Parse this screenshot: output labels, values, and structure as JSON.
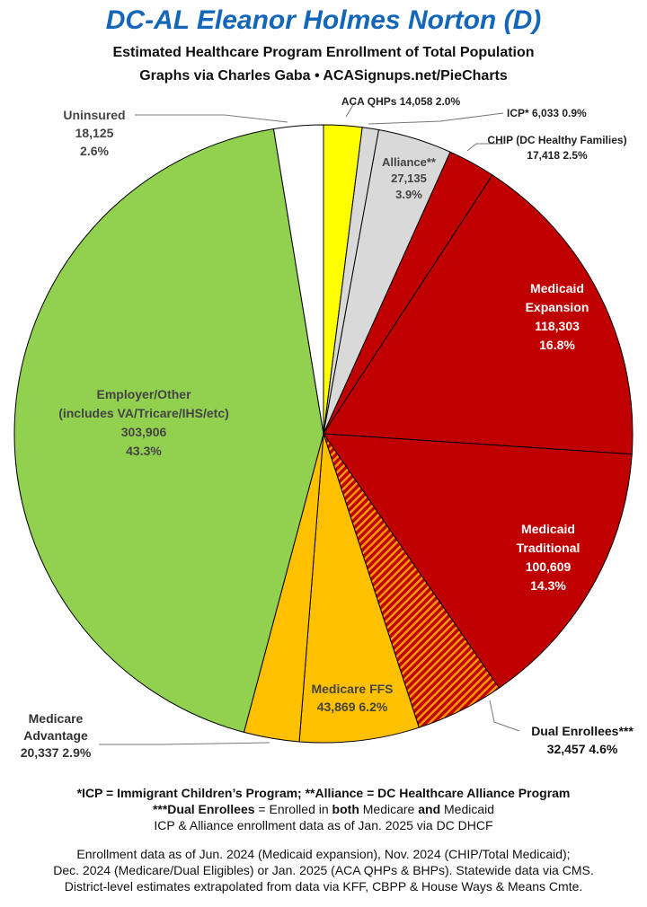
{
  "header": {
    "title": "DC-AL Eleanor Holmes Norton (D)",
    "subtitle": "Estimated Healthcare Program Enrollment of Total Population",
    "credit": "Graphs via Charles Gaba  •  ACASignups.net/PieCharts"
  },
  "chart_data": {
    "type": "pie",
    "start": "12 o'clock",
    "direction": "clockwise",
    "slices": [
      {
        "name": "ACA QHPs",
        "value": 14058,
        "percent": "2.0%",
        "color": "#ffff00",
        "lines": [
          "ACA QHPs 14,058 2.0%"
        ]
      },
      {
        "name": "ICP*",
        "value": 6033,
        "percent": "0.9%",
        "color": "#d9d9d9",
        "lines": [
          "ICP* 6,033 0.9%"
        ]
      },
      {
        "name": "Alliance**",
        "value": 27135,
        "percent": "3.9%",
        "color": "#d9d9d9",
        "lines": [
          "Alliance**",
          "27,135",
          "3.9%"
        ]
      },
      {
        "name": "CHIP (DC Healthy Families)",
        "value": 17418,
        "percent": "2.5%",
        "color": "#c00000",
        "lines": [
          "CHIP (DC Healthy Families)",
          "17,418 2.5%"
        ]
      },
      {
        "name": "Medicaid Expansion",
        "value": 118303,
        "percent": "16.8%",
        "color": "#c00000",
        "lines": [
          "Medicaid",
          "Expansion",
          "118,303",
          "16.8%"
        ]
      },
      {
        "name": "Medicaid Traditional",
        "value": 100609,
        "percent": "14.3%",
        "color": "#c00000",
        "lines": [
          "Medicaid",
          "Traditional",
          "100,609",
          "14.3%"
        ]
      },
      {
        "name": "Dual Enrollees***",
        "value": 32457,
        "percent": "4.6%",
        "color": "#c00000",
        "pattern": "red-orange-stripes",
        "lines": [
          "Dual Enrollees***",
          "32,457 4.6%"
        ]
      },
      {
        "name": "Medicare FFS",
        "value": 43869,
        "percent": "6.2%",
        "color": "#ffc000",
        "lines": [
          "Medicare FFS",
          "43,869 6.2%"
        ]
      },
      {
        "name": "Medicare Advantage",
        "value": 20337,
        "percent": "2.9%",
        "color": "#ffc000",
        "lines": [
          "Medicare",
          "Advantage",
          "20,337 2.9%"
        ]
      },
      {
        "name": "Employer/Other",
        "value": 303906,
        "percent": "43.3%",
        "color": "#92d050",
        "lines": [
          "Employer/Other",
          "(includes VA/Tricare/IHS/etc)",
          "303,906",
          "43.3%"
        ]
      },
      {
        "name": "Uninsured",
        "value": 18125,
        "percent": "2.6%",
        "color": "#ffffff",
        "lines": [
          "Uninsured",
          "18,125",
          "2.6%"
        ]
      }
    ]
  },
  "footnotes": {
    "line1": "*ICP = Immigrant Children’s Program; **Alliance = DC Healthcare Alliance Program",
    "line2_part1": "***Dual Enrollees",
    "line2_part2": " = Enrolled in ",
    "line2_part3": "both",
    "line2_part4": " Medicare ",
    "line2_part5": "and",
    "line2_part6": " Medicaid",
    "line3": "ICP & Alliance enrollment data as of Jan. 2025 via DC DHCF",
    "source1": "Enrollment data as of Jun. 2024 (Medicaid expansion), Nov. 2024 (CHIP/Total Medicaid);",
    "source2": "Dec. 2024 (Medicare/Dual Eligibles) or Jan. 2025 (ACA QHPs & BHPs). Statewide data via CMS.",
    "source3": "District-level estimates extrapolated from data via KFF, CBPP & House Ways & Means Cmte."
  }
}
